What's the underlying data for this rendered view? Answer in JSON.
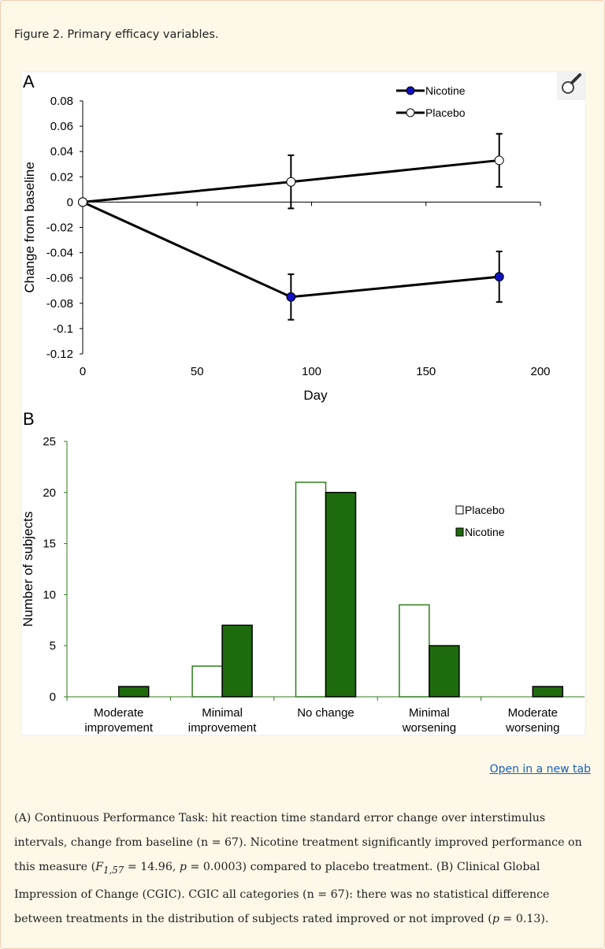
{
  "figure_title": "Figure 2. Primary efficacy variables.",
  "open_link": "Open in a new tab",
  "magnifier_icon": "magnifier-icon",
  "caption": {
    "p1": "(A) Continuous Performance Task: hit reaction time standard error change over interstimulus intervals, change from baseline (n = 67). Nicotine treatment significantly improved performance on this measure (",
    "f": "F",
    "f_sub": "1,57",
    "p2": " = 14.96, ",
    "p_a": "p",
    "p3": " = 0.0003) compared to placebo treatment. (B) Clinical Global Impression of Change (CGIC). CGIC all categories (n = 67): there was no statistical difference between treatments in the distribution of subjects rated improved or not improved (",
    "p_b": "p",
    "p4": " = 0.13)."
  },
  "chart_data": [
    {
      "panel": "A",
      "type": "line",
      "xlabel": "Day",
      "ylabel": "Change from baseline",
      "xlim": [
        0,
        200
      ],
      "ylim": [
        -0.12,
        0.08
      ],
      "xticks": [
        0,
        50,
        100,
        150,
        200
      ],
      "yticks": [
        0.08,
        0.06,
        0.04,
        0.02,
        0,
        -0.02,
        -0.04,
        -0.06,
        -0.08,
        -0.1,
        -0.12
      ],
      "ytick_labels": [
        "0.08",
        "0.06",
        "0.04",
        "0.02",
        "0",
        "-0.02",
        "-0.04",
        "-0.06",
        "-0.08",
        "-0.1",
        "-0.12"
      ],
      "legend_position": "top-right",
      "grid": false,
      "series": [
        {
          "name": "Nicotine",
          "color": "#1010c0",
          "x": [
            0,
            91,
            182
          ],
          "y": [
            0,
            -0.075,
            -0.059
          ],
          "err_low": [
            null,
            -0.093,
            -0.079
          ],
          "err_high": [
            null,
            -0.057,
            -0.039
          ]
        },
        {
          "name": "Placebo",
          "color": "#ffffff",
          "x": [
            0,
            91,
            182
          ],
          "y": [
            0,
            0.016,
            0.033
          ],
          "err_low": [
            null,
            -0.005,
            0.012
          ],
          "err_high": [
            null,
            0.037,
            0.054
          ]
        }
      ]
    },
    {
      "panel": "B",
      "type": "bar",
      "ylabel": "Number of subjects",
      "ylim": [
        0,
        25
      ],
      "yticks": [
        0,
        5,
        10,
        15,
        20,
        25
      ],
      "categories": [
        [
          "Moderate",
          "improvement"
        ],
        [
          "Minimal",
          "improvement"
        ],
        [
          "No change"
        ],
        [
          "Minimal",
          "worsening"
        ],
        [
          "Moderate",
          "worsening"
        ]
      ],
      "legend_position": "right",
      "grid": false,
      "series": [
        {
          "name": "Placebo",
          "color": "#ffffff",
          "stroke": "#2e7d1a",
          "values": [
            0,
            3,
            21,
            9,
            0
          ]
        },
        {
          "name": "Nicotine",
          "color": "#1e6b0e",
          "stroke": "#000000",
          "values": [
            1,
            7,
            20,
            5,
            1
          ]
        }
      ]
    }
  ]
}
